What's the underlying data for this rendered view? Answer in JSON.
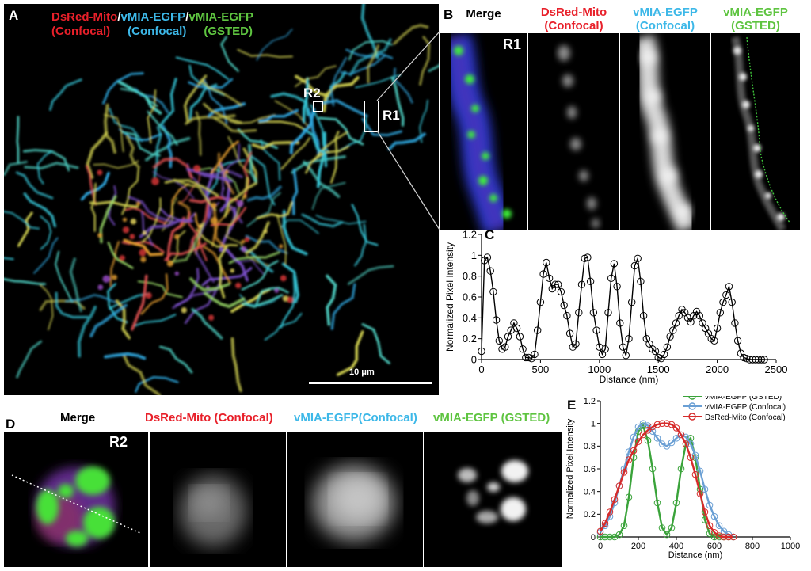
{
  "panel_a": {
    "letter": "A",
    "legend": [
      {
        "text": "DsRed-Mito",
        "color": "#e8202a"
      },
      {
        "text": "/",
        "color": "#ffffff"
      },
      {
        "text": "vMIA-EGFP",
        "color": "#3db8e8"
      },
      {
        "text": "/",
        "color": "#ffffff"
      },
      {
        "text": "vMIA-EGFP",
        "color": "#5ec440"
      }
    ],
    "legend_line2": [
      {
        "text": "(Confocal)",
        "color": "#e8202a"
      },
      {
        "text": "(Confocal)",
        "color": "#3db8e8"
      },
      {
        "text": "(GSTED)",
        "color": "#5ec440"
      }
    ],
    "roi1": "R1",
    "roi2": "R2",
    "scalebar": "10 μm"
  },
  "panel_b": {
    "letter": "B",
    "headers": [
      {
        "line1": "Merge",
        "line2": "",
        "color": "#000000"
      },
      {
        "line1": "DsRed-Mito",
        "line2": "(Confocal)",
        "color": "#e8202a"
      },
      {
        "line1": "vMIA-EGFP",
        "line2": "(Confocal)",
        "color": "#3db8e8"
      },
      {
        "line1": "vMIA-EGFP",
        "line2": "(GSTED)",
        "color": "#5ec440"
      }
    ],
    "roi_label": "R1"
  },
  "panel_d": {
    "letter": "D",
    "headers": [
      {
        "text": "Merge",
        "color": "#000000"
      },
      {
        "text": "DsRed-Mito (Confocal)",
        "color": "#e8202a"
      },
      {
        "text": "vMIA-EGFP(Confocal)",
        "color": "#3db8e8"
      },
      {
        "text": "vMIA-EGFP (GSTED)",
        "color": "#5ec440"
      }
    ],
    "roi_label": "R2"
  },
  "chart_data": [
    {
      "panel": "C",
      "type": "line",
      "xlabel": "Distance (nm)",
      "ylabel": "Normalized Pixel Intensity",
      "xlim": [
        0,
        2500
      ],
      "ylim": [
        0,
        1.2
      ],
      "xticks": [
        "0",
        "500",
        "1000",
        "1500",
        "2000",
        "2500"
      ],
      "yticks": [
        "0",
        "0.2",
        "0.4",
        "0.6",
        "0.8",
        "1",
        "1.2"
      ],
      "series": [
        {
          "color": "#000000",
          "x": [
            0,
            25,
            50,
            75,
            100,
            125,
            150,
            175,
            200,
            225,
            250,
            275,
            300,
            325,
            350,
            375,
            400,
            425,
            450,
            475,
            500,
            525,
            550,
            575,
            600,
            625,
            650,
            675,
            700,
            725,
            750,
            775,
            800,
            825,
            850,
            875,
            900,
            925,
            950,
            975,
            1000,
            1025,
            1050,
            1075,
            1100,
            1125,
            1150,
            1175,
            1200,
            1225,
            1250,
            1275,
            1300,
            1325,
            1350,
            1375,
            1400,
            1425,
            1450,
            1475,
            1500,
            1525,
            1550,
            1575,
            1600,
            1625,
            1650,
            1675,
            1700,
            1725,
            1750,
            1775,
            1800,
            1825,
            1850,
            1875,
            1900,
            1925,
            1950,
            1975,
            2000,
            2025,
            2050,
            2075,
            2100,
            2125,
            2150,
            2175,
            2200,
            2225,
            2250,
            2275,
            2300,
            2325,
            2350,
            2375,
            2400
          ],
          "y": [
            0.08,
            0.95,
            0.98,
            0.85,
            0.65,
            0.38,
            0.18,
            0.1,
            0.12,
            0.22,
            0.28,
            0.35,
            0.3,
            0.22,
            0.1,
            0.02,
            0.02,
            0.01,
            0.05,
            0.28,
            0.55,
            0.82,
            0.93,
            0.78,
            0.68,
            0.72,
            0.72,
            0.65,
            0.52,
            0.42,
            0.25,
            0.12,
            0.15,
            0.45,
            0.72,
            0.97,
            0.98,
            0.75,
            0.45,
            0.28,
            0.12,
            0.05,
            0.1,
            0.45,
            0.78,
            0.92,
            0.7,
            0.35,
            0.12,
            0.04,
            0.2,
            0.55,
            0.9,
            0.97,
            0.75,
            0.42,
            0.2,
            0.15,
            0.1,
            0.08,
            0.02,
            0.01,
            0.05,
            0.12,
            0.22,
            0.28,
            0.35,
            0.42,
            0.48,
            0.45,
            0.4,
            0.36,
            0.42,
            0.46,
            0.42,
            0.35,
            0.3,
            0.25,
            0.2,
            0.18,
            0.3,
            0.45,
            0.55,
            0.62,
            0.7,
            0.55,
            0.35,
            0.18,
            0.06,
            0.02,
            0.01,
            0.0,
            0.0,
            0.0,
            0.0,
            0.0,
            0.0
          ]
        }
      ]
    },
    {
      "panel": "E",
      "type": "line",
      "xlabel": "Distance (nm)",
      "ylabel": "Normalized Pixel Intensity",
      "xlim": [
        0,
        1000
      ],
      "ylim": [
        0,
        1.2
      ],
      "xticks": [
        "0",
        "200",
        "400",
        "600",
        "800",
        "1000"
      ],
      "yticks": [
        "0",
        "0.2",
        "0.4",
        "0.6",
        "0.8",
        "1",
        "1.2"
      ],
      "legend_position": "top-right",
      "series": [
        {
          "name": "vMIA-EGFP (GSTED)",
          "color": "#3aa33a",
          "x": [
            0,
            25,
            50,
            75,
            100,
            125,
            150,
            175,
            200,
            225,
            250,
            275,
            300,
            325,
            350,
            375,
            400,
            425,
            450,
            475,
            500,
            525,
            550,
            575,
            600,
            625,
            650,
            675,
            700
          ],
          "y": [
            0,
            0,
            0,
            0,
            0.02,
            0.1,
            0.35,
            0.7,
            0.93,
            0.98,
            0.85,
            0.6,
            0.3,
            0.08,
            0.02,
            0.08,
            0.3,
            0.6,
            0.82,
            0.87,
            0.7,
            0.42,
            0.15,
            0.03,
            0,
            0,
            0,
            0,
            0
          ]
        },
        {
          "name": "vMIA-EGFP (Confocal)",
          "color": "#6a9fd4",
          "x": [
            0,
            25,
            50,
            75,
            100,
            125,
            150,
            175,
            200,
            225,
            250,
            275,
            300,
            325,
            350,
            375,
            400,
            425,
            450,
            475,
            500,
            525,
            550,
            575,
            600,
            625,
            650,
            675,
            700
          ],
          "y": [
            0.04,
            0.1,
            0.18,
            0.3,
            0.45,
            0.6,
            0.75,
            0.88,
            0.97,
            1.0,
            0.98,
            0.93,
            0.87,
            0.82,
            0.8,
            0.83,
            0.87,
            0.9,
            0.88,
            0.82,
            0.72,
            0.58,
            0.42,
            0.28,
            0.18,
            0.1,
            0.05,
            0.02,
            0.0
          ]
        },
        {
          "name": "DsRed-Mito (Confocal)",
          "color": "#d62b2b",
          "x": [
            0,
            25,
            50,
            75,
            100,
            125,
            150,
            175,
            200,
            225,
            250,
            275,
            300,
            325,
            350,
            375,
            400,
            425,
            450,
            475,
            500,
            525,
            550,
            575,
            600,
            625,
            650,
            675,
            700
          ],
          "y": [
            0.05,
            0.12,
            0.22,
            0.33,
            0.45,
            0.57,
            0.68,
            0.76,
            0.84,
            0.9,
            0.94,
            0.97,
            0.99,
            1.0,
            1.0,
            0.99,
            0.96,
            0.9,
            0.82,
            0.7,
            0.55,
            0.38,
            0.22,
            0.1,
            0.04,
            0.01,
            0,
            0,
            0
          ]
        }
      ]
    }
  ]
}
